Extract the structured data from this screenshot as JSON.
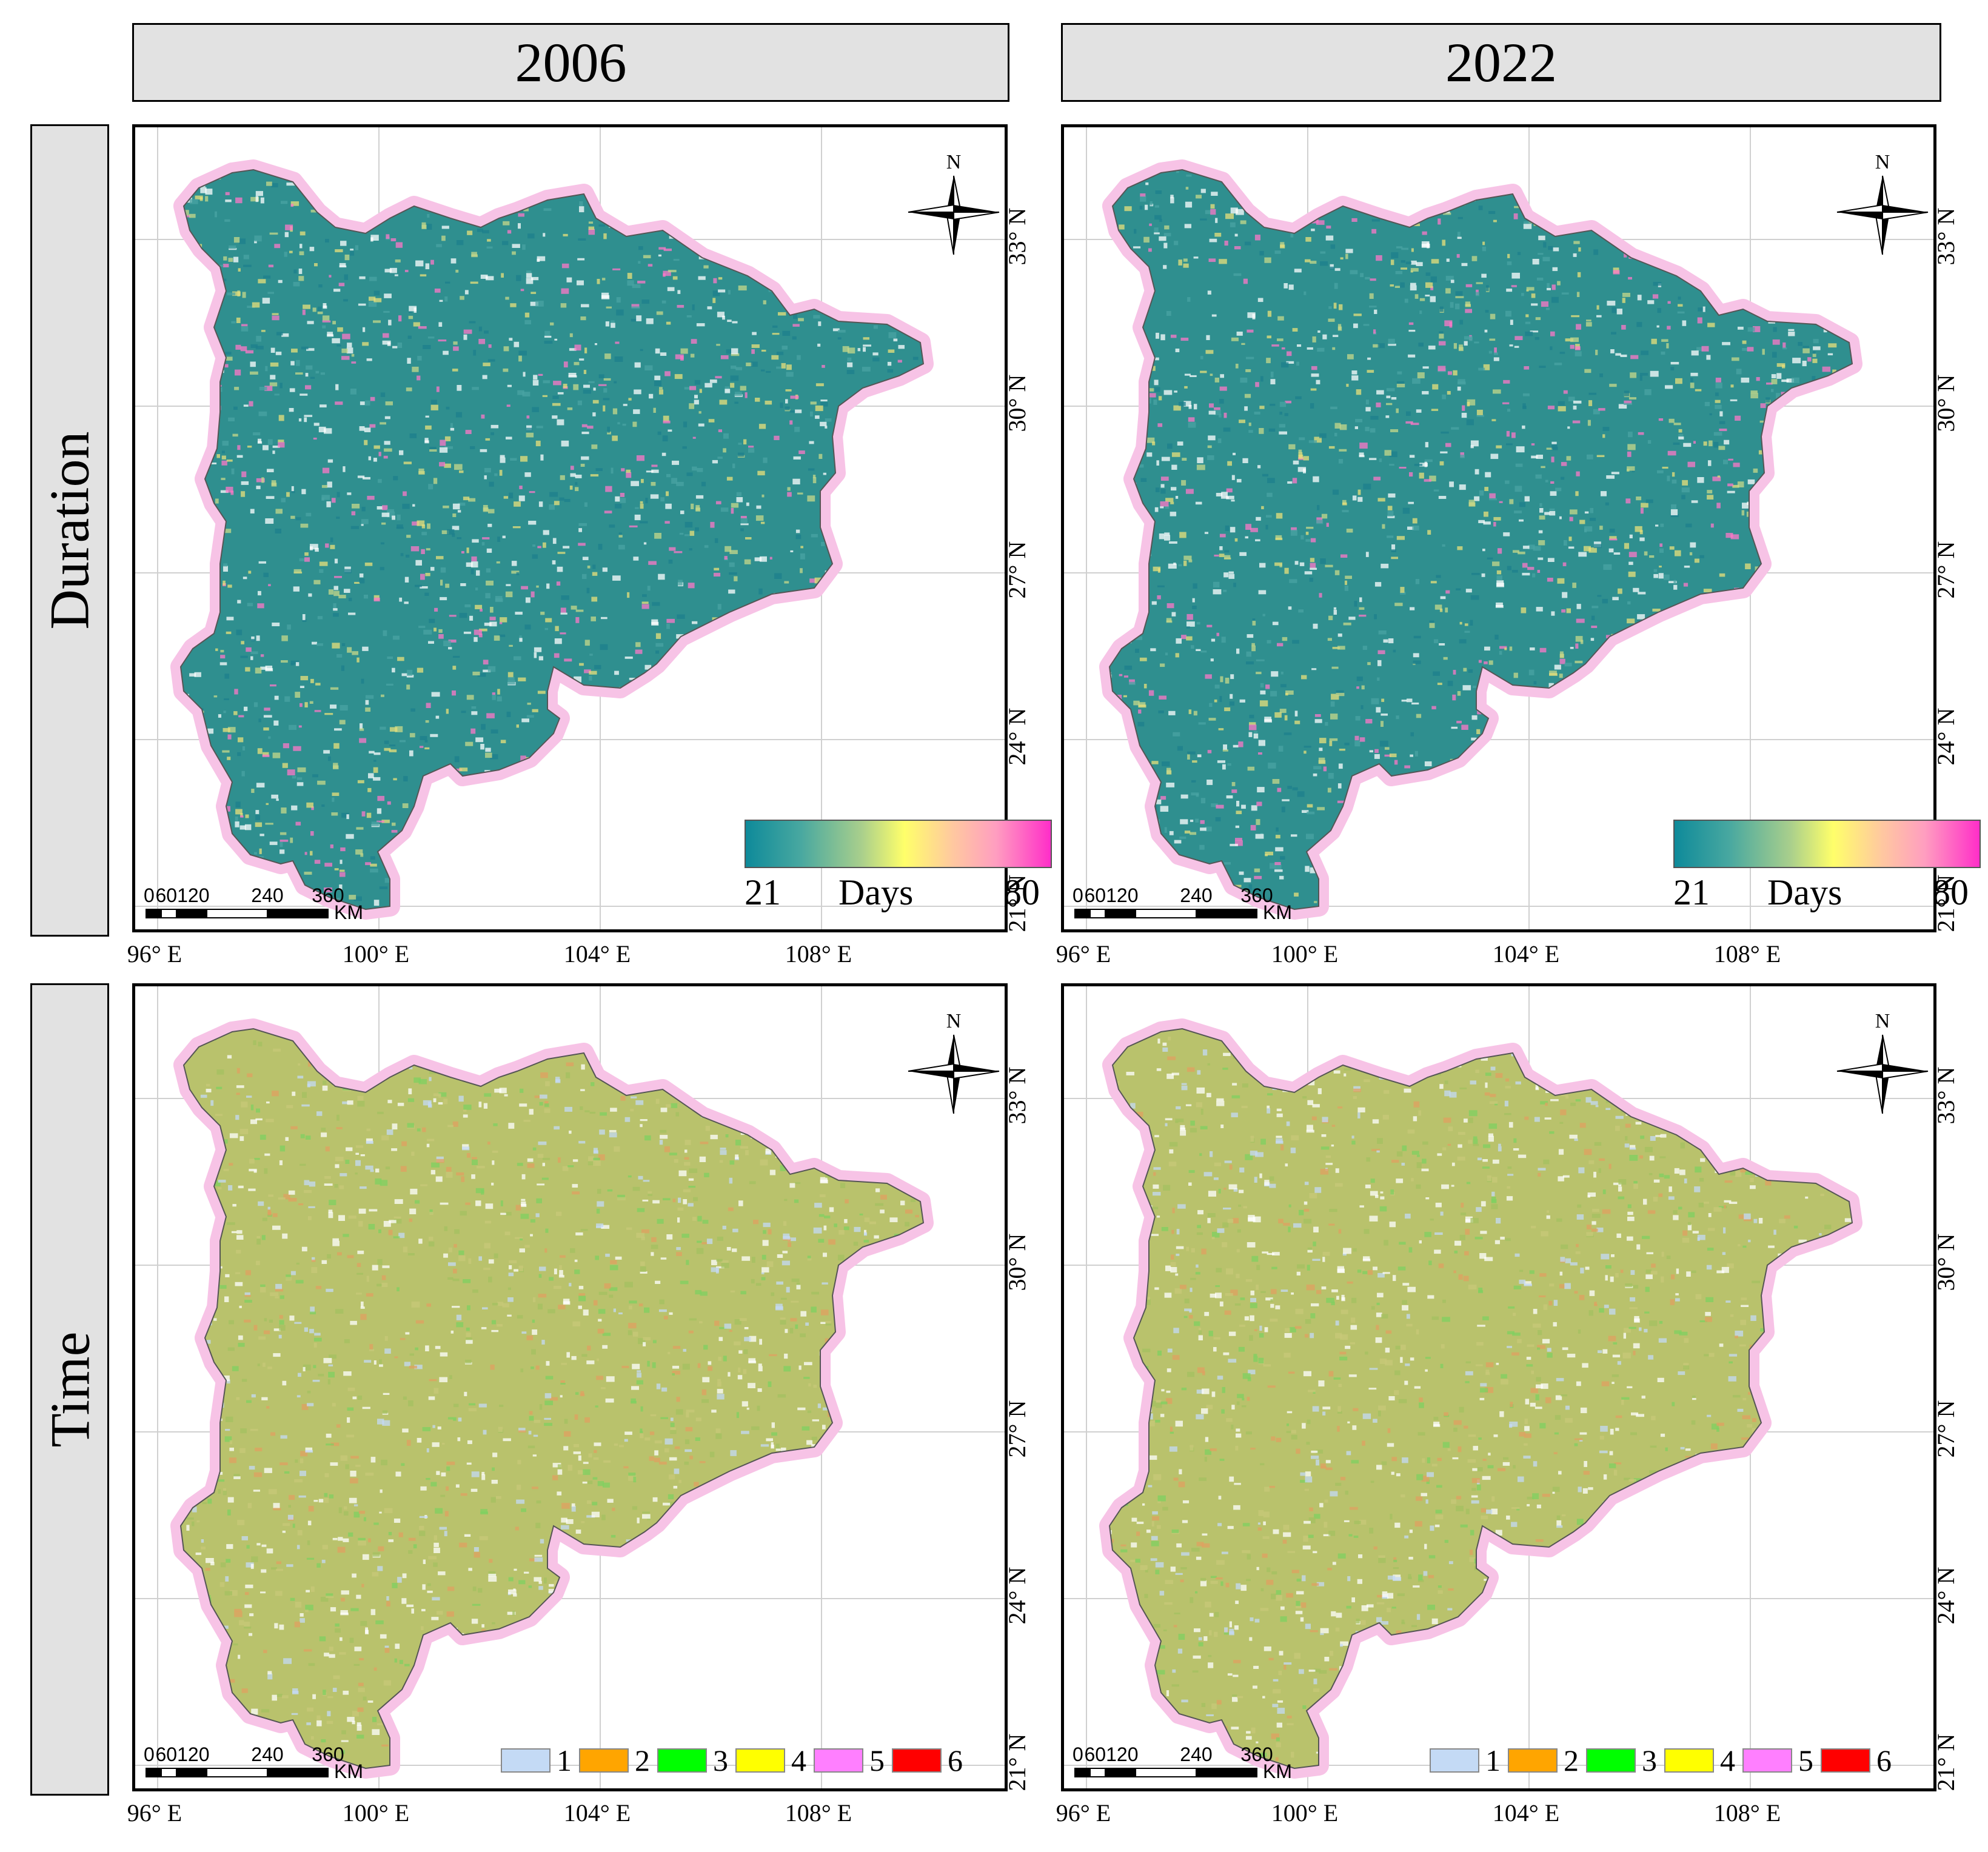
{
  "columns": [
    "2006",
    "2022"
  ],
  "rows": [
    "Duration",
    "Time"
  ],
  "lon_ticks": [
    "96° E",
    "100° E",
    "104° E",
    "108° E"
  ],
  "lat_ticks": [
    "33° N",
    "30° N",
    "27° N",
    "24° N",
    "21° N"
  ],
  "north_label": "N",
  "scalebar": {
    "labels": [
      "0",
      "60120",
      "240",
      "360"
    ],
    "unit": "KM"
  },
  "duration_legend": {
    "min": "21",
    "max": "80",
    "unit": "Days",
    "colors": [
      "#0e8a9a",
      "#a9cf8c",
      "#ffff6a",
      "#ff9ec0",
      "#ff2ec8"
    ]
  },
  "time_legend": {
    "items": [
      {
        "label": "1",
        "color": "#c4daf5"
      },
      {
        "label": "2",
        "color": "#ffa500"
      },
      {
        "label": "3",
        "color": "#00ff00"
      },
      {
        "label": "4",
        "color": "#ffff00"
      },
      {
        "label": "5",
        "color": "#ff7fff"
      },
      {
        "label": "6",
        "color": "#ff0000"
      }
    ]
  },
  "map_fill": {
    "duration": [
      "#2f8f8f",
      "#6fb0a0",
      "#c7d88a"
    ],
    "time": [
      "#b9c26c",
      "#d9d9a8",
      "#9fc86a"
    ]
  }
}
